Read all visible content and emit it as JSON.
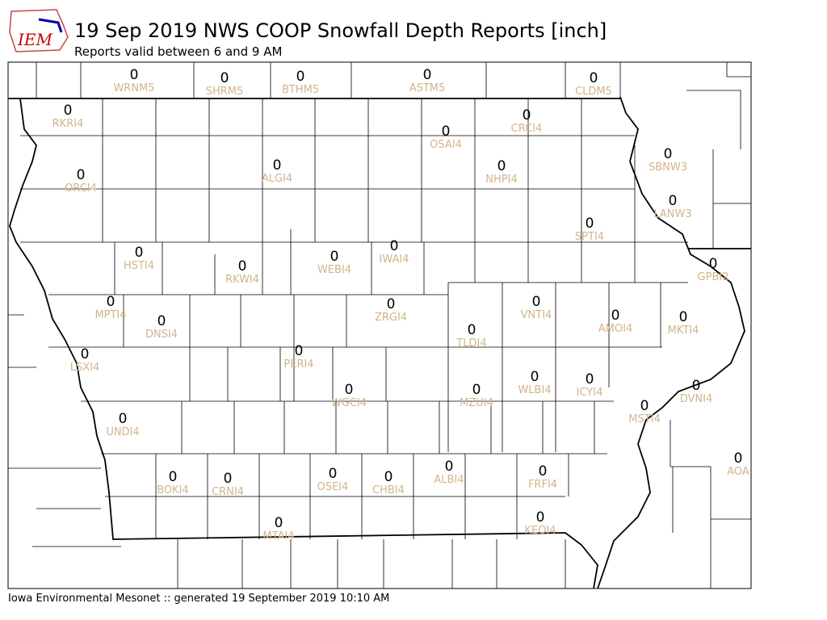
{
  "header": {
    "logo": "IEM",
    "title": "19 Sep 2019 NWS COOP Snowfall Depth Reports [inch]",
    "subtitle": "Reports valid between 6 and 9 AM"
  },
  "stations": [
    {
      "id": "WRNM5",
      "value": 0
    },
    {
      "id": "SHRM5",
      "value": 0
    },
    {
      "id": "BTHM5",
      "value": 0
    },
    {
      "id": "ASTM5",
      "value": 0
    },
    {
      "id": "CLDM5",
      "value": 0
    },
    {
      "id": "RKRI4",
      "value": 0
    },
    {
      "id": "CRCI4",
      "value": 0
    },
    {
      "id": "OSAI4",
      "value": 0
    },
    {
      "id": "SBNW3",
      "value": 0
    },
    {
      "id": "ORCI4",
      "value": 0
    },
    {
      "id": "ALGI4",
      "value": 0
    },
    {
      "id": "NHPI4",
      "value": 0
    },
    {
      "id": "LANW3",
      "value": 0
    },
    {
      "id": "SPTI4",
      "value": 0
    },
    {
      "id": "IWAI4",
      "value": 0
    },
    {
      "id": "HSTI4",
      "value": 0
    },
    {
      "id": "WEBI4",
      "value": 0
    },
    {
      "id": "RKWI4",
      "value": 0
    },
    {
      "id": "GPBI2",
      "value": 0
    },
    {
      "id": "MPTI4",
      "value": 0
    },
    {
      "id": "VNTI4",
      "value": 0
    },
    {
      "id": "ZRGI4",
      "value": 0
    },
    {
      "id": "AMOI4",
      "value": 0
    },
    {
      "id": "MKTI4",
      "value": 0
    },
    {
      "id": "DNSI4",
      "value": 0
    },
    {
      "id": "TLDI4",
      "value": 0
    },
    {
      "id": "PERI4",
      "value": 0
    },
    {
      "id": "LSXI4",
      "value": 0
    },
    {
      "id": "WLBI4",
      "value": 0
    },
    {
      "id": "ICYI4",
      "value": 0
    },
    {
      "id": "DVNI4",
      "value": 0
    },
    {
      "id": "WGCI4",
      "value": 0
    },
    {
      "id": "MZUI4",
      "value": 0
    },
    {
      "id": "MSTI4",
      "value": 0
    },
    {
      "id": "UNDI4",
      "value": 0
    },
    {
      "id": "AOA",
      "value": 0
    },
    {
      "id": "ALBI4",
      "value": 0
    },
    {
      "id": "FRFI4",
      "value": 0
    },
    {
      "id": "OSEI4",
      "value": 0
    },
    {
      "id": "BOKI4",
      "value": 0
    },
    {
      "id": "CHBI4",
      "value": 0
    },
    {
      "id": "CRNI4",
      "value": 0
    },
    {
      "id": "MTAI4",
      "value": 0
    },
    {
      "id": "KEOI4",
      "value": 0
    }
  ],
  "footer": "Iowa Environmental Mesonet :: generated 19 September 2019 10:10 AM"
}
